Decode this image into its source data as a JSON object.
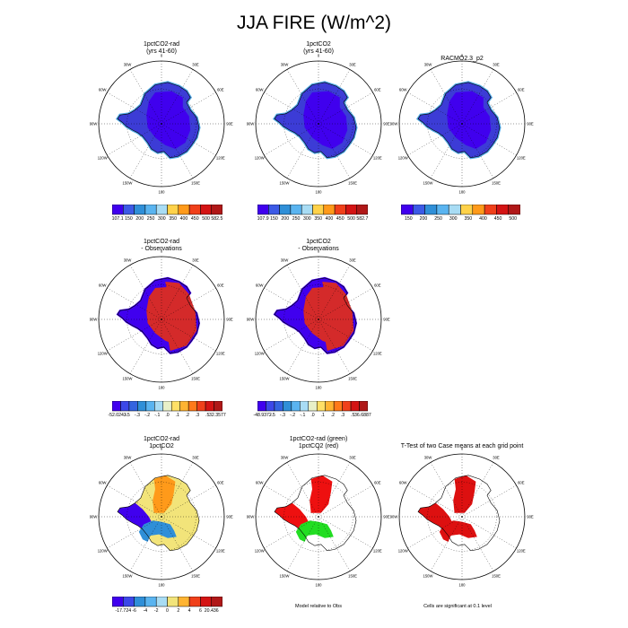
{
  "title": "JJA FIRE (W/m^2)",
  "map_labels": {
    "top": "0",
    "bottom": "180",
    "left": "90W",
    "right": "90E",
    "upper_left": "30W",
    "upper_right": "30E",
    "mid_upper_left": "60W",
    "mid_upper_right": "60E",
    "mid_lower_left": "120W",
    "mid_lower_right": "120E",
    "lower_left": "150W",
    "lower_right": "150E"
  },
  "colors": {
    "map_outline": "#000000",
    "grid": "#000000"
  },
  "panels": [
    {
      "title": [
        "1pctCO2-rad",
        "(yrs 41-60)"
      ],
      "fill": "#3c3cd6",
      "interior": "#4000ee",
      "edge": "#4fa8e8",
      "type": "absolute"
    },
    {
      "title": [
        "1pctCO2",
        "(yrs 41-60)"
      ],
      "fill": "#3c3cd6",
      "interior": "#4000ee",
      "edge": "#4fa8e8",
      "type": "absolute"
    },
    {
      "title": [
        "RACMO2.3_p2",
        ""
      ],
      "fill": "#3c3cd6",
      "interior": "#4000ee",
      "edge": "#4fa8e8",
      "type": "absolute"
    },
    {
      "title": [
        "1pctCO2-rad",
        "- Observations"
      ],
      "fill": "#d42a2a",
      "interior": "#d42a2a",
      "edge": "#4000ee",
      "type": "difference"
    },
    {
      "title": [
        "1pctCO2",
        "- Observations"
      ],
      "fill": "#d42a2a",
      "interior": "#d42a2a",
      "edge": "#4000ee",
      "type": "difference"
    },
    {
      "title": [
        "1pctCO2-rad",
        "1pctCO2"
      ],
      "fill": "#f2e47a",
      "interior": "#ffd24a",
      "edge": "#2f8fd8",
      "type": "model-diff"
    },
    {
      "title": [
        "1pctCO2-rad (green)",
        "1pctCO2 (red)"
      ],
      "fill": "#ffffff",
      "interior": "#ee1010",
      "edge": "#22dd22",
      "type": "significance"
    },
    {
      "title": [
        "T-Test of two Case means at each grid point",
        ""
      ],
      "fill": "#ffffff",
      "interior": "#dd1010",
      "edge": "#dd1010",
      "type": "significance"
    }
  ],
  "colorbars": [
    {
      "colors": [
        "#4000ee",
        "#3c5ae6",
        "#2f8fd8",
        "#5ab4f0",
        "#a8dcf4",
        "#ffd24a",
        "#ff9a1a",
        "#f0401a",
        "#d41414",
        "#b01818"
      ],
      "labels": [
        "107.1",
        "150",
        "200",
        "250",
        "300",
        "350",
        "400",
        "450",
        "500",
        "582.5"
      ]
    },
    {
      "colors": [
        "#4000ee",
        "#3c5ae6",
        "#2f8fd8",
        "#5ab4f0",
        "#a8dcf4",
        "#ffd24a",
        "#ff9a1a",
        "#f0401a",
        "#d41414",
        "#b01818"
      ],
      "labels": [
        "107.9",
        "150",
        "200",
        "250",
        "300",
        "350",
        "400",
        "450",
        "500",
        "582.7"
      ]
    },
    {
      "colors": [
        "#4000ee",
        "#3c5ae6",
        "#2f8fd8",
        "#5ab4f0",
        "#a8dcf4",
        "#ffd24a",
        "#ff9a1a",
        "#f0401a",
        "#d41414",
        "#b01818"
      ],
      "labels": [
        "150",
        "200",
        "250",
        "300",
        "350",
        "400",
        "450",
        "500"
      ]
    },
    {
      "colors": [
        "#4000ee",
        "#3c48e8",
        "#3464e0",
        "#2f8fd8",
        "#5ab4f0",
        "#a8dcf4",
        "#e8f0c8",
        "#ffe066",
        "#ffb432",
        "#ff7a1a",
        "#f0401a",
        "#d41414",
        "#b01818"
      ],
      "labels": [
        "-52.0243",
        "-.5",
        "-.3",
        "-.2",
        "-.1",
        ".0",
        ".1",
        ".2",
        ".3",
        ".5",
        "32.3577"
      ]
    },
    {
      "colors": [
        "#4000ee",
        "#3c48e8",
        "#3464e0",
        "#2f8fd8",
        "#5ab4f0",
        "#a8dcf4",
        "#e8f0c8",
        "#ffe066",
        "#ffb432",
        "#ff7a1a",
        "#f0401a",
        "#d41414",
        "#b01818"
      ],
      "labels": [
        "-48.9372",
        "-.5",
        "-.3",
        "-.2",
        "-.1",
        ".0",
        ".1",
        ".2",
        ".3",
        ".5",
        "36.6887"
      ]
    },
    {
      "colors": [
        "#4000ee",
        "#3c48e8",
        "#2f8fd8",
        "#5ab4f0",
        "#a8dcf4",
        "#f2e47a",
        "#ffb432",
        "#f0401a",
        "#d41414",
        "#b01818"
      ],
      "labels": [
        "-17.724",
        "-6",
        "-4",
        "-2",
        "0",
        "2",
        "4",
        "6",
        "20.436"
      ]
    }
  ],
  "captions": {
    "model_relative": "Model relative to Obs",
    "significance": "Cells are significant at 0.1 level"
  }
}
